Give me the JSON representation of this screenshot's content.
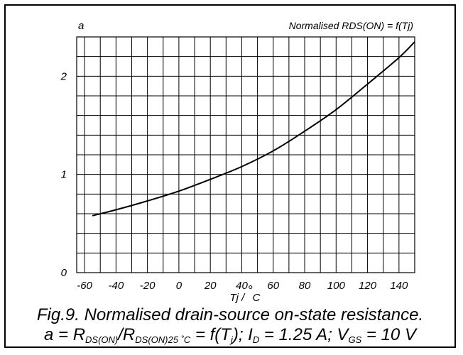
{
  "chart_data": {
    "type": "line",
    "title": "Normalised RDS(ON) = f(Tj)",
    "ylabel": "a",
    "xlabel_text": "Tj / ",
    "xlabel_degree": "°",
    "xlabel_unit": "C",
    "xlim": [
      -65,
      150
    ],
    "ylim": [
      0,
      2.4
    ],
    "x_ticks": [
      "-60",
      "-40",
      "-20",
      "0",
      "20",
      "40",
      "60",
      "80",
      "100",
      "120",
      "140"
    ],
    "y_ticks": [
      "0",
      "1",
      "2"
    ],
    "grid": true,
    "series": [
      {
        "x": [
          -55,
          -40,
          -20,
          0,
          20,
          40,
          60,
          80,
          100,
          120,
          140,
          150
        ],
        "y": [
          0.58,
          0.64,
          0.73,
          0.83,
          0.95,
          1.08,
          1.24,
          1.44,
          1.66,
          1.92,
          2.19,
          2.35
        ]
      }
    ]
  },
  "caption": {
    "line1": "Fig.9.  Normalised drain-source on-state resistance.",
    "line2": {
      "a": "a = R",
      "sub1": "DS(ON)",
      "slash": "/R",
      "sub2": "DS(ON)25 ˚C",
      "eq": " = f(T",
      "sub3": "j",
      "id_part": "); I",
      "sub4": "D",
      "id_val": " = 1.25 A; V",
      "sub5": "GS",
      "vgs_val": " = 10 V"
    }
  }
}
